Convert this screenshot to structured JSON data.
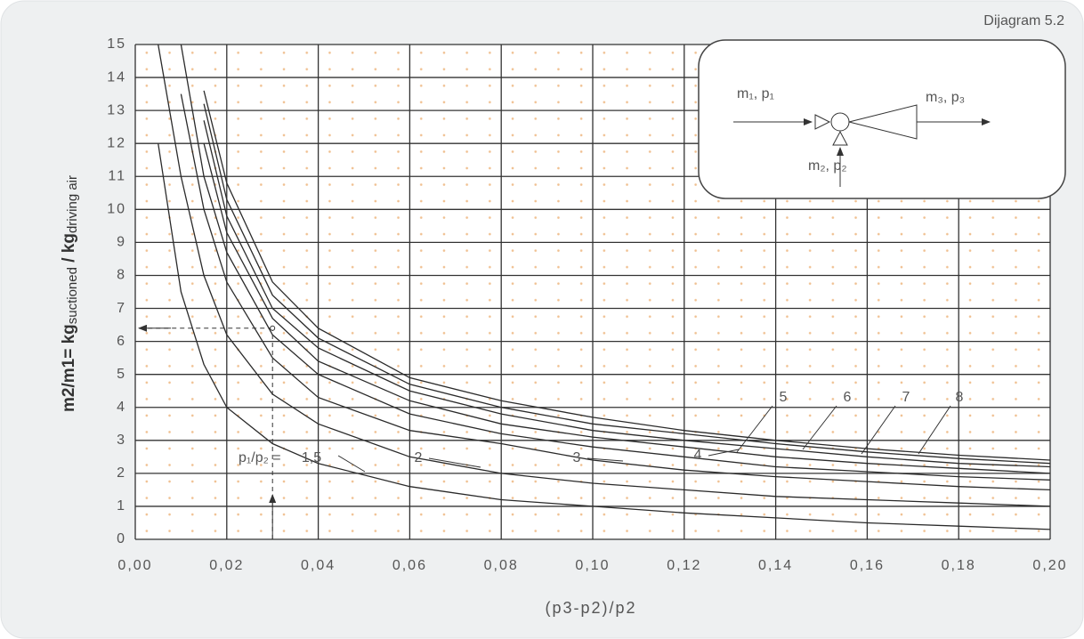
{
  "chart_data": {
    "type": "line",
    "title": "Dijagram 5.2",
    "x_label": "(p3-p2)/p2",
    "y_label": {
      "main": "m2/m1= kg",
      "sub1": "suctioned",
      "mid": " / kg",
      "sub2": "driving air"
    },
    "curve_label_prefix": "p₁/p₂ =",
    "inset": {
      "inlet": "m₁, p₁",
      "outlet": "m₃, p₃",
      "suction": "m₂, p₂"
    },
    "x": [
      0.005,
      0.01,
      0.015,
      0.02,
      0.03,
      0.04,
      0.06,
      0.08,
      0.1,
      0.12,
      0.14,
      0.16,
      0.18,
      0.2
    ],
    "series": [
      {
        "name": "1,5",
        "color": "#2a2a2a",
        "values": [
          12,
          7.5,
          5.3,
          4.0,
          2.9,
          2.3,
          1.6,
          1.2,
          1.0,
          0.8,
          0.65,
          0.5,
          0.4,
          0.3
        ]
      },
      {
        "name": "2",
        "color": "#2a2a2a",
        "values": [
          15,
          11,
          8,
          6.2,
          4.4,
          3.5,
          2.5,
          2.0,
          1.7,
          1.5,
          1.3,
          1.2,
          1.1,
          1.0
        ]
      },
      {
        "name": "3",
        "color": "#2a2a2a",
        "values": [
          null,
          13.5,
          10,
          7.8,
          5.5,
          4.3,
          3.3,
          2.9,
          2.4,
          2.1,
          1.9,
          1.75,
          1.6,
          1.5
        ]
      },
      {
        "name": "4",
        "color": "#2a2a2a",
        "values": [
          null,
          15,
          11,
          8.7,
          6.2,
          5.0,
          3.8,
          3.2,
          2.8,
          2.5,
          2.2,
          2.05,
          1.9,
          1.8
        ]
      },
      {
        "name": "5",
        "color": "#2a2a2a",
        "values": [
          null,
          null,
          12,
          9.3,
          6.7,
          5.4,
          4.2,
          3.5,
          3.1,
          2.8,
          2.5,
          2.3,
          2.15,
          2.0
        ]
      },
      {
        "name": "6",
        "color": "#2a2a2a",
        "values": [
          null,
          null,
          12.7,
          9.8,
          7.0,
          5.8,
          4.5,
          3.8,
          3.3,
          3.0,
          2.75,
          2.5,
          2.3,
          2.2
        ]
      },
      {
        "name": "7",
        "color": "#2a2a2a",
        "values": [
          null,
          null,
          13.2,
          10.3,
          7.4,
          6.1,
          4.7,
          4.0,
          3.5,
          3.2,
          2.9,
          2.65,
          2.45,
          2.3
        ]
      },
      {
        "name": "8",
        "color": "#2a2a2a",
        "values": [
          null,
          null,
          13.6,
          10.8,
          7.8,
          6.4,
          4.9,
          4.2,
          3.7,
          3.3,
          3.0,
          2.75,
          2.55,
          2.4
        ]
      }
    ],
    "example_point": {
      "x": 0.03,
      "y": 6.4
    },
    "xlim": [
      0,
      0.2
    ],
    "ylim": [
      0,
      15
    ],
    "xticks": [
      {
        "value": 0,
        "label": "0,00"
      },
      {
        "value": 0.02,
        "label": "0,02"
      },
      {
        "value": 0.04,
        "label": "0,04"
      },
      {
        "value": 0.06,
        "label": "0,06"
      },
      {
        "value": 0.08,
        "label": "0,08"
      },
      {
        "value": 0.1,
        "label": "0,10"
      },
      {
        "value": 0.12,
        "label": "0,12"
      },
      {
        "value": 0.14,
        "label": "0,14"
      },
      {
        "value": 0.16,
        "label": "0,16"
      },
      {
        "value": 0.18,
        "label": "0,18"
      },
      {
        "value": 0.2,
        "label": "0,20"
      }
    ],
    "yticks": [
      0,
      1,
      2,
      3,
      4,
      5,
      6,
      7,
      8,
      9,
      10,
      11,
      12,
      13,
      14,
      15
    ],
    "grid": true
  }
}
